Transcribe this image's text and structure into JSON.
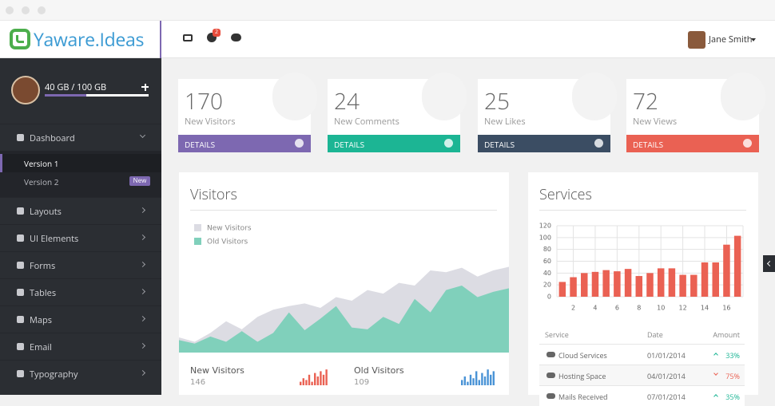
{
  "header": {
    "logo": "Yaware.Ideas",
    "notification_count": 2,
    "user_name": "Jane Smith"
  },
  "sidebar": {
    "storage": "40 GB / 100 GB",
    "menu": [
      {
        "label": "Dashboard",
        "children": [
          {
            "label": "Version 1"
          },
          {
            "label": "Version 2",
            "badge": "New"
          }
        ]
      },
      {
        "label": "Layouts"
      },
      {
        "label": "UI Elements"
      },
      {
        "label": "Forms"
      },
      {
        "label": "Tables"
      },
      {
        "label": "Maps"
      },
      {
        "label": "Email"
      },
      {
        "label": "Typography"
      }
    ]
  },
  "stats": [
    {
      "value": 170,
      "label": "New Visitors",
      "link": "DETAILS",
      "color": "#7d68b1"
    },
    {
      "value": 24,
      "label": "New Comments",
      "link": "DETAILS",
      "color": "#1cb594"
    },
    {
      "value": 25,
      "label": "New Likes",
      "link": "DETAILS",
      "color": "#3b4d63"
    },
    {
      "value": 72,
      "label": "New Views",
      "link": "DETAILS",
      "color": "#ea6153"
    }
  ],
  "visitor_summary": [
    {
      "label": "New Visitors",
      "total": 146
    },
    {
      "label": "Old Visitors",
      "total": 109
    }
  ],
  "services_table": {
    "columns": [
      "Service",
      "Date",
      "Amount"
    ],
    "rows": [
      {
        "service": "Cloud Services",
        "date": "01/01/2014",
        "amount": "33%",
        "trend": "up"
      },
      {
        "service": "Hosting Space",
        "date": "04/01/2014",
        "amount": "75%",
        "trend": "down"
      },
      {
        "service": "Mails Received",
        "date": "07/01/2014",
        "amount": "35%",
        "trend": "up"
      }
    ]
  },
  "chart_data": [
    {
      "type": "area",
      "title": "Visitors",
      "ylim": [
        0,
        100
      ],
      "series": [
        {
          "name": "New Visitors",
          "color": "#dcdce3",
          "values": [
            17,
            12,
            22,
            35,
            26,
            40,
            48,
            52,
            55,
            50,
            62,
            58,
            70,
            66,
            78,
            75,
            92,
            90,
            95,
            85,
            92,
            96
          ]
        },
        {
          "name": "Old Visitors",
          "color": "#80d0bb",
          "values": [
            14,
            10,
            18,
            12,
            24,
            12,
            22,
            45,
            25,
            38,
            52,
            28,
            26,
            40,
            32,
            60,
            45,
            70,
            75,
            62,
            68,
            72
          ]
        }
      ]
    },
    {
      "type": "bar",
      "title": "Services",
      "color": "#ea6153",
      "x": [
        1,
        2,
        3,
        4,
        5,
        6,
        7,
        8,
        9,
        10,
        11,
        12,
        13,
        14,
        15,
        16,
        17
      ],
      "values": [
        25,
        33,
        40,
        42,
        45,
        43,
        47,
        35,
        40,
        48,
        48,
        37,
        37,
        58,
        58,
        88,
        103
      ],
      "xlim": [
        0.5,
        17.5
      ],
      "xticks": [
        2,
        4,
        6,
        8,
        10,
        12,
        14,
        16
      ],
      "ylim": [
        0,
        120
      ],
      "yticks": [
        0,
        20,
        40,
        60,
        80,
        100,
        120
      ],
      "grid": true
    },
    {
      "type": "spark",
      "color": "#ea6153",
      "ylim": [
        0,
        10
      ],
      "values": [
        2,
        4,
        3,
        6,
        2,
        7,
        5,
        8,
        6,
        9
      ]
    },
    {
      "type": "spark",
      "color": "#4a93d6",
      "ylim": [
        0,
        10
      ],
      "values": [
        3,
        5,
        2,
        6,
        4,
        8,
        3,
        7,
        5,
        9,
        6,
        8
      ]
    }
  ]
}
